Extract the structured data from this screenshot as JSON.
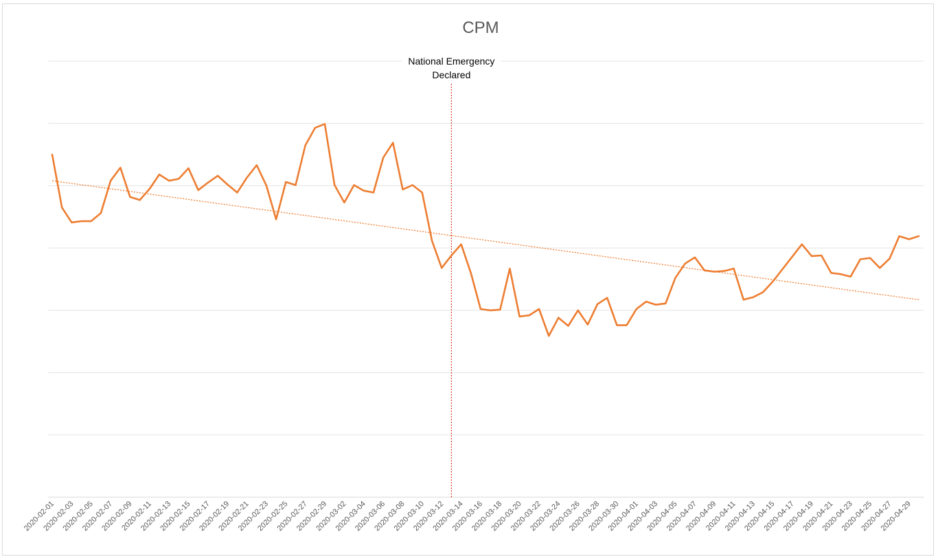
{
  "chart_data": {
    "type": "line",
    "title": "CPM",
    "xlabel": "",
    "ylabel": "",
    "ylim": [
      0,
      7
    ],
    "grid": true,
    "legend": "none",
    "series_color": "#ED7D31",
    "trend_color": "#ED7D31",
    "annotation_color": "#E03C31",
    "x": [
      "2020-02-01",
      "2020-02-02",
      "2020-02-03",
      "2020-02-04",
      "2020-02-05",
      "2020-02-06",
      "2020-02-07",
      "2020-02-08",
      "2020-02-09",
      "2020-02-10",
      "2020-02-11",
      "2020-02-12",
      "2020-02-13",
      "2020-02-14",
      "2020-02-15",
      "2020-02-16",
      "2020-02-17",
      "2020-02-18",
      "2020-02-19",
      "2020-02-20",
      "2020-02-21",
      "2020-02-22",
      "2020-02-23",
      "2020-02-24",
      "2020-02-25",
      "2020-02-26",
      "2020-02-27",
      "2020-02-28",
      "2020-02-29",
      "2020-03-01",
      "2020-03-02",
      "2020-03-03",
      "2020-03-04",
      "2020-03-05",
      "2020-03-06",
      "2020-03-07",
      "2020-03-08",
      "2020-03-09",
      "2020-03-10",
      "2020-03-11",
      "2020-03-12",
      "2020-03-13",
      "2020-03-14",
      "2020-03-15",
      "2020-03-16",
      "2020-03-17",
      "2020-03-18",
      "2020-03-19",
      "2020-03-20",
      "2020-03-21",
      "2020-03-22",
      "2020-03-23",
      "2020-03-24",
      "2020-03-25",
      "2020-03-26",
      "2020-03-27",
      "2020-03-28",
      "2020-03-29",
      "2020-03-30",
      "2020-03-31",
      "2020-04-01",
      "2020-04-02",
      "2020-04-03",
      "2020-04-04",
      "2020-04-05",
      "2020-04-06",
      "2020-04-07",
      "2020-04-08",
      "2020-04-09",
      "2020-04-10",
      "2020-04-11",
      "2020-04-12",
      "2020-04-13",
      "2020-04-14",
      "2020-04-15",
      "2020-04-16",
      "2020-04-17",
      "2020-04-18",
      "2020-04-19",
      "2020-04-20",
      "2020-04-21",
      "2020-04-22",
      "2020-04-23",
      "2020-04-24",
      "2020-04-25",
      "2020-04-26",
      "2020-04-27",
      "2020-04-28",
      "2020-04-29",
      "2020-04-30"
    ],
    "x_tick_labels": [
      "2020-02-01",
      "2020-02-03",
      "2020-02-05",
      "2020-02-07",
      "2020-02-09",
      "2020-02-11",
      "2020-02-13",
      "2020-02-15",
      "2020-02-17",
      "2020-02-19",
      "2020-02-21",
      "2020-02-23",
      "2020-02-25",
      "2020-02-27",
      "2020-02-29",
      "2020-03-02",
      "2020-03-04",
      "2020-03-06",
      "2020-03-08",
      "2020-03-10",
      "2020-03-12",
      "2020-03-14",
      "2020-03-16",
      "2020-03-18",
      "2020-03-20",
      "2020-03-22",
      "2020-03-24",
      "2020-03-26",
      "2020-03-28",
      "2020-03-30",
      "2020-04-01",
      "2020-04-03",
      "2020-04-05",
      "2020-04-07",
      "2020-04-09",
      "2020-04-11",
      "2020-04-13",
      "2020-04-15",
      "2020-04-17",
      "2020-04-19",
      "2020-04-21",
      "2020-04-23",
      "2020-04-25",
      "2020-04-27",
      "2020-04-29"
    ],
    "series": [
      {
        "values": [
          5.5,
          4.65,
          4.41,
          4.43,
          4.43,
          4.56,
          5.08,
          5.29,
          4.82,
          4.77,
          4.95,
          5.18,
          5.08,
          5.11,
          5.28,
          4.93,
          5.05,
          5.16,
          5.02,
          4.89,
          5.13,
          5.33,
          5.0,
          4.46,
          5.06,
          5.01,
          5.65,
          5.93,
          5.99,
          5.01,
          4.73,
          5.01,
          4.92,
          4.89,
          5.45,
          5.69,
          4.94,
          5.01,
          4.89,
          4.12,
          3.68,
          3.88,
          4.06,
          3.6,
          3.02,
          3.0,
          3.01,
          3.67,
          2.9,
          2.92,
          3.02,
          2.59,
          2.88,
          2.75,
          3.0,
          2.77,
          3.1,
          3.2,
          2.76,
          2.76,
          3.02,
          3.14,
          3.09,
          3.11,
          3.52,
          3.75,
          3.85,
          3.64,
          3.62,
          3.63,
          3.67,
          3.17,
          3.21,
          3.29,
          3.46,
          3.66,
          3.86,
          4.06,
          3.87,
          3.88,
          3.6,
          3.58,
          3.54,
          3.82,
          3.84,
          3.68,
          3.83,
          4.19,
          4.14,
          4.19
        ]
      }
    ],
    "trendline": {
      "type": "linear",
      "start": 5.08,
      "end": 3.17
    },
    "annotation": {
      "x": "2020-03-13",
      "lines": [
        "National Emergency",
        "Declared"
      ]
    }
  }
}
